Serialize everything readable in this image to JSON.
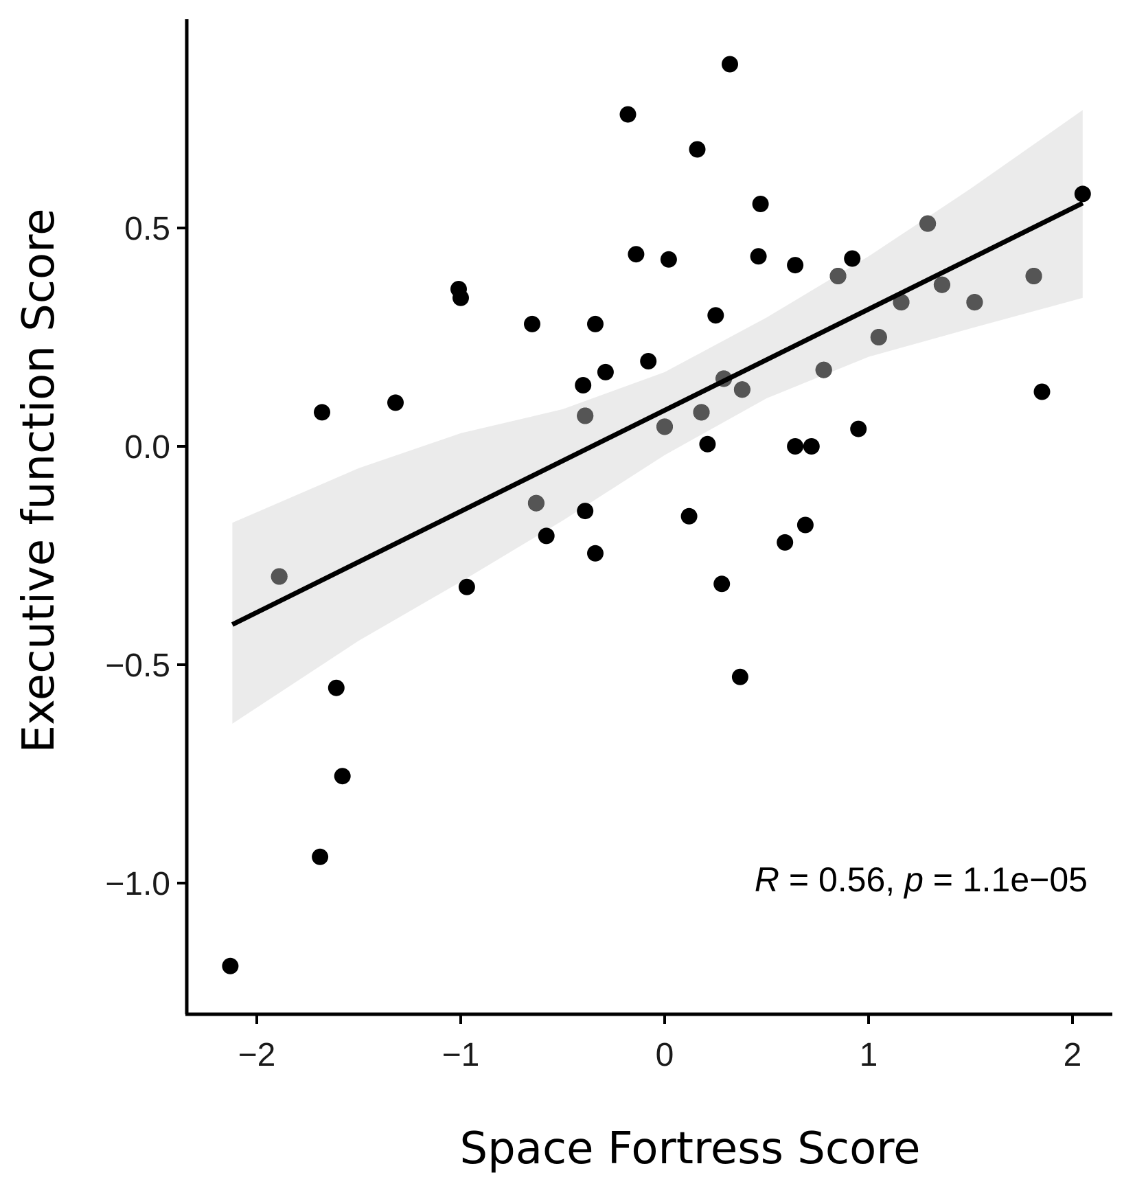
{
  "chart_data": {
    "type": "scatter",
    "title": "",
    "xlabel": "Space Fortress Score",
    "ylabel": "Executive function Score",
    "xlim": [
      -2.3,
      2.35
    ],
    "ylim": [
      -1.3,
      0.98
    ],
    "x_ticks": [
      {
        "value": -2,
        "label": "−2"
      },
      {
        "value": -1,
        "label": "−1"
      },
      {
        "value": 0,
        "label": "0"
      },
      {
        "value": 1,
        "label": "1"
      },
      {
        "value": 2,
        "label": "2"
      }
    ],
    "y_ticks": [
      {
        "value": 0.5,
        "label": "0.5"
      },
      {
        "value": 0.0,
        "label": "0.0"
      },
      {
        "value": -0.5,
        "label": "−0.5"
      },
      {
        "value": -1.0,
        "label": "−1.0"
      }
    ],
    "grid": false,
    "legend": "none",
    "colors": {
      "points": "#000000",
      "points_overlap": "#555555",
      "fit_line": "#000000",
      "confidence_band": "#ebebeb"
    },
    "annotation": {
      "r_symbol": "R",
      "r_text": " = 0.56, ",
      "p_symbol": "p",
      "p_text": " = 1.1e−05"
    },
    "fit_line": {
      "x": [
        -2.12,
        2.05
      ],
      "y": [
        -0.408,
        0.557
      ]
    },
    "confidence_band": {
      "x": [
        -2.12,
        -1.5,
        -1.0,
        -0.5,
        0.0,
        0.5,
        1.0,
        1.5,
        2.05
      ],
      "lower": [
        -0.635,
        -0.445,
        -0.31,
        -0.17,
        -0.02,
        0.11,
        0.205,
        0.27,
        0.34
      ],
      "upper": [
        -0.175,
        -0.05,
        0.03,
        0.085,
        0.17,
        0.295,
        0.435,
        0.59,
        0.77
      ]
    },
    "points": [
      {
        "x": 0.32,
        "y": 0.875
      },
      {
        "x": -0.18,
        "y": 0.76
      },
      {
        "x": 0.16,
        "y": 0.68
      },
      {
        "x": 0.47,
        "y": 0.555
      },
      {
        "x": 2.05,
        "y": 0.578
      },
      {
        "x": 1.29,
        "y": 0.51
      },
      {
        "x": -0.14,
        "y": 0.44
      },
      {
        "x": 0.02,
        "y": 0.428
      },
      {
        "x": 0.46,
        "y": 0.435
      },
      {
        "x": 0.64,
        "y": 0.415
      },
      {
        "x": 0.92,
        "y": 0.43
      },
      {
        "x": 0.85,
        "y": 0.39
      },
      {
        "x": 1.36,
        "y": 0.37
      },
      {
        "x": 1.81,
        "y": 0.39
      },
      {
        "x": 1.16,
        "y": 0.33
      },
      {
        "x": 1.52,
        "y": 0.33
      },
      {
        "x": -1.01,
        "y": 0.36
      },
      {
        "x": -1.0,
        "y": 0.34
      },
      {
        "x": -0.65,
        "y": 0.28
      },
      {
        "x": -0.34,
        "y": 0.28
      },
      {
        "x": 0.25,
        "y": 0.3
      },
      {
        "x": 1.05,
        "y": 0.25
      },
      {
        "x": -0.08,
        "y": 0.195
      },
      {
        "x": -0.29,
        "y": 0.17
      },
      {
        "x": 0.78,
        "y": 0.175
      },
      {
        "x": -0.4,
        "y": 0.14
      },
      {
        "x": 0.29,
        "y": 0.155
      },
      {
        "x": 0.38,
        "y": 0.13
      },
      {
        "x": 1.85,
        "y": 0.125
      },
      {
        "x": -1.32,
        "y": 0.1
      },
      {
        "x": -1.68,
        "y": 0.078
      },
      {
        "x": 0.18,
        "y": 0.078
      },
      {
        "x": -0.39,
        "y": 0.07
      },
      {
        "x": 0.0,
        "y": 0.045
      },
      {
        "x": 0.95,
        "y": 0.04
      },
      {
        "x": 0.21,
        "y": 0.005
      },
      {
        "x": 0.64,
        "y": 0.0
      },
      {
        "x": 0.72,
        "y": 0.0
      },
      {
        "x": -0.63,
        "y": -0.13
      },
      {
        "x": -0.39,
        "y": -0.148
      },
      {
        "x": 0.12,
        "y": -0.16
      },
      {
        "x": 0.69,
        "y": -0.18
      },
      {
        "x": -0.58,
        "y": -0.205
      },
      {
        "x": 0.59,
        "y": -0.22
      },
      {
        "x": -0.34,
        "y": -0.245
      },
      {
        "x": -1.89,
        "y": -0.298
      },
      {
        "x": -0.97,
        "y": -0.322
      },
      {
        "x": 0.28,
        "y": -0.315
      },
      {
        "x": 0.37,
        "y": -0.528
      },
      {
        "x": -1.61,
        "y": -0.553
      },
      {
        "x": -1.58,
        "y": -0.755
      },
      {
        "x": -1.69,
        "y": -0.94
      },
      {
        "x": -2.13,
        "y": -1.19
      }
    ],
    "overlap_points": [
      {
        "x": -1.89,
        "y": -0.298
      },
      {
        "x": -0.63,
        "y": -0.13
      },
      {
        "x": -0.39,
        "y": 0.07
      },
      {
        "x": 0.0,
        "y": 0.045
      },
      {
        "x": 0.18,
        "y": 0.078
      },
      {
        "x": 0.29,
        "y": 0.155
      },
      {
        "x": 0.38,
        "y": 0.13
      },
      {
        "x": 0.78,
        "y": 0.175
      },
      {
        "x": 0.85,
        "y": 0.39
      },
      {
        "x": 1.05,
        "y": 0.25
      },
      {
        "x": 1.16,
        "y": 0.33
      },
      {
        "x": 1.29,
        "y": 0.51
      },
      {
        "x": 1.36,
        "y": 0.37
      },
      {
        "x": 1.52,
        "y": 0.33
      },
      {
        "x": 1.81,
        "y": 0.39
      }
    ]
  }
}
